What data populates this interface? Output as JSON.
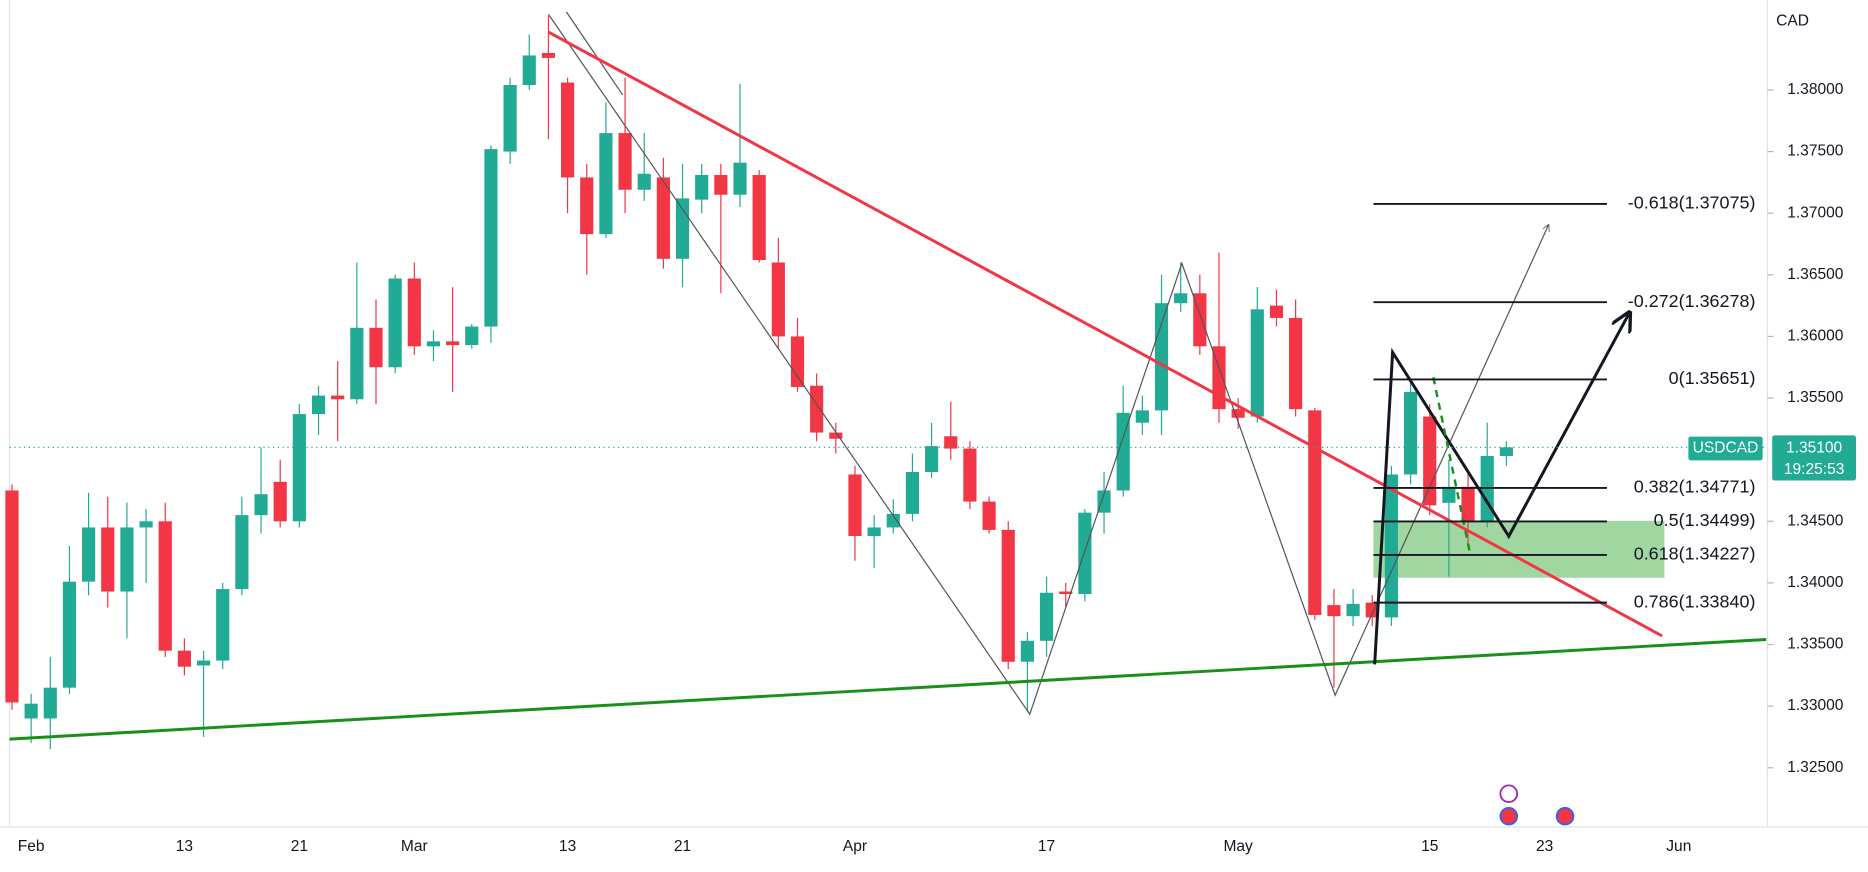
{
  "chart_data": {
    "type": "candlestick",
    "symbol": "USDCAD",
    "currency": "CAD",
    "last_price": {
      "value": 1.351,
      "label": "1.35100"
    },
    "countdown": "19:25:53",
    "up_color": "#22ab94",
    "down_color": "#f23645",
    "categories": [
      null,
      "Feb",
      null,
      null,
      null,
      null,
      null,
      null,
      null,
      "13",
      null,
      null,
      null,
      null,
      null,
      "21",
      null,
      null,
      null,
      null,
      null,
      "Mar",
      null,
      null,
      null,
      null,
      null,
      null,
      null,
      "13",
      null,
      null,
      null,
      null,
      null,
      "21",
      null,
      null,
      null,
      null,
      null,
      null,
      null,
      null,
      "Apr",
      null,
      null,
      null,
      null,
      null,
      null,
      null,
      null,
      null,
      "17",
      null,
      null,
      null,
      null,
      null,
      null,
      null,
      null,
      null,
      "May",
      null,
      null,
      null,
      null,
      null,
      null,
      null,
      null,
      null,
      "15",
      null,
      null,
      null,
      null,
      null,
      "23",
      null,
      null,
      null,
      null,
      null,
      null,
      "Jun"
    ],
    "open": [
      1.3475,
      1.329,
      1.329,
      1.3315,
      1.3401,
      1.3445,
      1.3393,
      1.3445,
      1.345,
      1.3345,
      1.3333,
      1.3337,
      1.3395,
      1.3455,
      1.3482,
      1.345,
      1.3537,
      1.3552,
      1.3549,
      1.3607,
      1.3575,
      1.3647,
      1.3592,
      1.3596,
      1.3593,
      1.3608,
      1.375,
      1.3804,
      1.383,
      1.3806,
      1.3729,
      1.3683,
      1.3765,
      1.3719,
      1.3729,
      1.3663,
      1.3711,
      1.3731,
      1.3715,
      1.3731,
      1.366,
      1.36,
      1.356,
      1.3522,
      1.3488,
      1.3438,
      1.3445,
      1.3456,
      1.349,
      1.3519,
      1.3509,
      1.3466,
      1.3443,
      1.3336,
      1.3353,
      1.3393,
      1.3391,
      1.3457,
      1.3475,
      1.353,
      1.354,
      1.3627,
      1.3635,
      1.3592,
      1.3541,
      1.3535,
      1.3625,
      1.3615,
      1.354,
      1.3382,
      1.3373,
      1.3384,
      1.3372,
      1.3488,
      1.3535,
      1.3465,
      1.3478,
      1.345,
      1.3503,
      null,
      null,
      null,
      null,
      null,
      null,
      null,
      null,
      null
    ],
    "high": [
      1.348,
      1.331,
      1.334,
      1.343,
      1.3473,
      1.347,
      1.3465,
      1.346,
      1.3465,
      1.3355,
      1.3345,
      1.34,
      1.347,
      1.351,
      1.35,
      1.3545,
      1.356,
      1.358,
      1.366,
      1.363,
      1.365,
      1.366,
      1.3605,
      1.364,
      1.361,
      1.3755,
      1.381,
      1.3845,
      1.386,
      1.381,
      1.374,
      1.379,
      1.381,
      1.3765,
      1.3745,
      1.374,
      1.374,
      1.374,
      1.3805,
      1.3735,
      1.368,
      1.3615,
      1.357,
      1.353,
      1.3495,
      1.3455,
      1.3468,
      1.3505,
      1.353,
      1.3547,
      1.3515,
      1.347,
      1.345,
      1.336,
      1.3405,
      1.34,
      1.346,
      1.349,
      1.356,
      1.3552,
      1.365,
      1.366,
      1.365,
      1.3668,
      1.355,
      1.364,
      1.3638,
      1.363,
      1.3542,
      1.3395,
      1.3395,
      1.339,
      1.3495,
      1.3565,
      1.3545,
      1.35,
      1.349,
      1.353,
      1.3515,
      null,
      null,
      null,
      null,
      null,
      null,
      null,
      null,
      null
    ],
    "low": [
      1.3297,
      1.327,
      1.3265,
      1.331,
      1.339,
      1.338,
      1.3355,
      1.34,
      1.334,
      1.3325,
      1.3275,
      1.333,
      1.339,
      1.344,
      1.3445,
      1.3445,
      1.352,
      1.3515,
      1.3545,
      1.3545,
      1.357,
      1.3585,
      1.358,
      1.3555,
      1.359,
      1.3595,
      1.374,
      1.38,
      1.376,
      1.37,
      1.365,
      1.368,
      1.37,
      1.371,
      1.3655,
      1.364,
      1.37,
      1.3635,
      1.3705,
      1.366,
      1.359,
      1.3555,
      1.3515,
      1.3505,
      1.3418,
      1.3412,
      1.344,
      1.345,
      1.3485,
      1.35,
      1.346,
      1.344,
      1.333,
      1.3295,
      1.334,
      1.338,
      1.3385,
      1.344,
      1.347,
      1.352,
      1.352,
      1.362,
      1.3585,
      1.353,
      1.3525,
      1.353,
      1.3608,
      1.3535,
      1.337,
      1.3315,
      1.3365,
      1.3365,
      1.3365,
      1.348,
      1.3455,
      1.3405,
      1.343,
      1.3445,
      1.3495,
      null,
      null,
      null,
      null,
      null,
      null,
      null,
      null,
      null
    ],
    "close": [
      1.3303,
      1.3302,
      1.3315,
      1.3401,
      1.3445,
      1.3393,
      1.3445,
      1.345,
      1.3345,
      1.3332,
      1.3337,
      1.3395,
      1.3455,
      1.3472,
      1.345,
      1.3537,
      1.3552,
      1.3549,
      1.3607,
      1.3575,
      1.3647,
      1.3592,
      1.3596,
      1.3593,
      1.3608,
      1.3752,
      1.3804,
      1.3828,
      1.3826,
      1.3729,
      1.3683,
      1.3765,
      1.3719,
      1.3732,
      1.3663,
      1.3712,
      1.3731,
      1.3715,
      1.3741,
      1.3662,
      1.36,
      1.3559,
      1.3522,
      1.3517,
      1.3438,
      1.3445,
      1.3456,
      1.349,
      1.3511,
      1.3509,
      1.3466,
      1.3443,
      1.3336,
      1.3353,
      1.3392,
      1.3391,
      1.3457,
      1.3475,
      1.3538,
      1.354,
      1.3627,
      1.3635,
      1.3592,
      1.3541,
      1.3534,
      1.3622,
      1.3615,
      1.3541,
      1.3374,
      1.3373,
      1.3383,
      1.3372,
      1.3488,
      1.3555,
      1.3463,
      1.3478,
      1.345,
      1.3503,
      1.351,
      null,
      null,
      null,
      null,
      null,
      null,
      null,
      null,
      null
    ],
    "ylim": [
      1.3202,
      1.3873
    ],
    "yticks": [
      {
        "value": 1.325,
        "label": "1.32500"
      },
      {
        "value": 1.33,
        "label": "1.33000"
      },
      {
        "value": 1.335,
        "label": "1.33500"
      },
      {
        "value": 1.34,
        "label": "1.34000"
      },
      {
        "value": 1.345,
        "label": "1.34500"
      },
      {
        "value": 1.355,
        "label": "1.35500"
      },
      {
        "value": 1.36,
        "label": "1.36000"
      },
      {
        "value": 1.365,
        "label": "1.36500"
      },
      {
        "value": 1.37,
        "label": "1.37000"
      },
      {
        "value": 1.375,
        "label": "1.37500"
      },
      {
        "value": 1.38,
        "label": "1.38000"
      }
    ],
    "fib_levels": [
      {
        "value": 1.37075,
        "label": "-0.618(1.37075)"
      },
      {
        "value": 1.36278,
        "label": "-0.272(1.36278)"
      },
      {
        "value": 1.35651,
        "label": "0(1.35651)"
      },
      {
        "value": 1.34771,
        "label": "0.382(1.34771)"
      },
      {
        "value": 1.34499,
        "label": "0.5(1.34499)"
      },
      {
        "value": 1.34227,
        "label": "0.618(1.34227)"
      },
      {
        "value": 1.3384,
        "label": "0.786(1.33840)"
      }
    ]
  }
}
